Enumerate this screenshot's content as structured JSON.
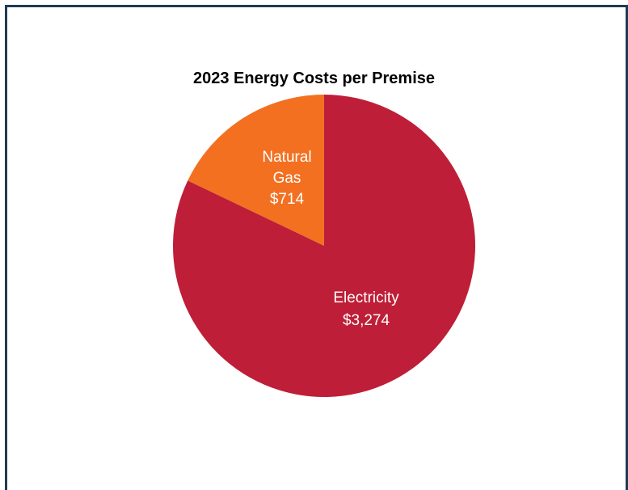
{
  "chart_data": {
    "type": "pie",
    "title": "2023 Energy Costs per Premise",
    "slices": [
      {
        "name": "Natural Gas",
        "label_lines": [
          "Natural",
          "Gas",
          "$714"
        ],
        "value": 714,
        "color": "#f37021"
      },
      {
        "name": "Electricity",
        "label_lines": [
          "Electricity",
          "$3,274"
        ],
        "value": 3274,
        "color": "#be1e37"
      }
    ],
    "border_color": "#1f3a56"
  }
}
